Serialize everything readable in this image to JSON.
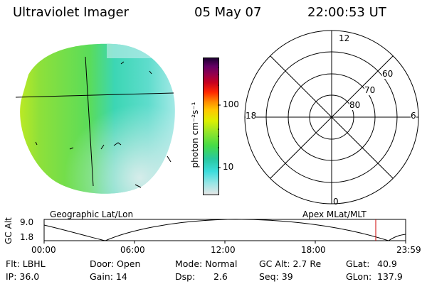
{
  "header": {
    "instrument": "Ultraviolet Imager",
    "date": "05 May 07",
    "time": "22:00:53 UT"
  },
  "colorbar": {
    "unit_label": "photon cm⁻²s⁻¹",
    "ticks": [
      "100",
      "10"
    ]
  },
  "polar_plot": {
    "mlt_labels": {
      "top": "12",
      "bottom": "0",
      "left": "18",
      "right": "6"
    },
    "lat_labels": [
      "60",
      "70",
      "80"
    ]
  },
  "panel_labels": {
    "left": "Geographic Lat/Lon",
    "right": "Apex MLat/MLT"
  },
  "altitude_plot": {
    "ylabel": "GC Alt",
    "yticks": [
      "9.0",
      "1.8"
    ],
    "xticks": [
      "00:00",
      "06:00",
      "12:00",
      "18:00",
      "23:59"
    ],
    "current_time_marker": "22:00"
  },
  "info": {
    "filter": "Flt: LBHL",
    "ip": "IP: 36.0",
    "door": "Door: Open",
    "gain": "Gain: 14",
    "mode": "Mode:  Normal",
    "dsp_label": "Dsp:",
    "dsp_value": "2.6",
    "gc_alt": "GC Alt: 2.7 Re",
    "seq": "Seq: 39",
    "glat_label": "GLat:",
    "glat_value": "40.9",
    "glon_label": "GLon:",
    "glon_value": "137.9"
  },
  "colors": {
    "colorbar_scale": [
      "#e6e6e6",
      "#9be6e6",
      "#3cdcdc",
      "#28c8a0",
      "#46dc46",
      "#96e628",
      "#dcf000",
      "#ffc800",
      "#ff8c00",
      "#ff2800",
      "#c8001e",
      "#96004b",
      "#640064",
      "#1e0032"
    ],
    "marker": "#cc0000"
  }
}
